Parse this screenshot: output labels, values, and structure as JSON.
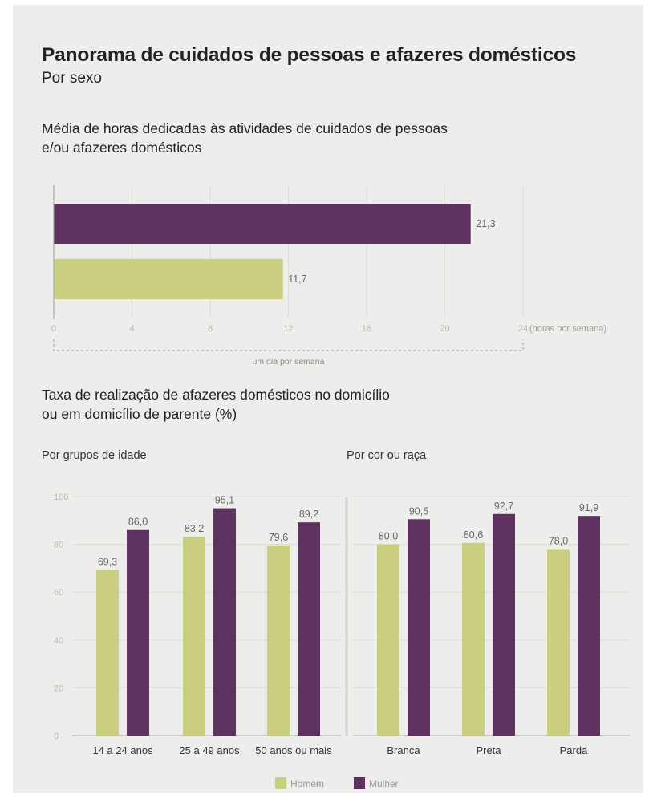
{
  "header": {
    "title": "Panorama de cuidados de pessoas e afazeres domésticos",
    "subtitle": "Por sexo"
  },
  "colors": {
    "homem": "#c9cf7e",
    "mulher": "#5e3160"
  },
  "legend": {
    "homem": "Homem",
    "mulher": "Mulher"
  },
  "chart_data": [
    {
      "type": "bar",
      "orientation": "horizontal",
      "title": "Média de horas dedicadas às atividades de cuidados de pessoas e/ou afazeres domésticos",
      "title_lines": [
        "Média de horas dedicadas às atividades de cuidados de pessoas",
        "e/ou afazeres domésticos"
      ],
      "categories": [
        "Mulher",
        "Homem"
      ],
      "values": [
        21.3,
        11.7
      ],
      "value_labels": [
        "21,3",
        "11,7"
      ],
      "xlim": [
        0,
        24
      ],
      "x_ticks": [
        0,
        4,
        8,
        12,
        16,
        20,
        24
      ],
      "x_unit": "(horas por semana)",
      "annotation": "um dia por semana"
    },
    {
      "type": "bar",
      "title": "Taxa de realização de afazeres domésticos no domicílio ou em domicílio de parente (%)",
      "title_lines": [
        "Taxa de realização de afazeres domésticos no domicílio",
        "ou em domicílio de parente (%)"
      ],
      "subtitle": "Por grupos de idade",
      "categories": [
        "14 a 24 anos",
        "25 a 49 anos",
        "50 anos ou mais"
      ],
      "series": [
        {
          "name": "Homem",
          "values": [
            69.3,
            83.2,
            79.6
          ],
          "labels": [
            "69,3",
            "83,2",
            "79,6"
          ]
        },
        {
          "name": "Mulher",
          "values": [
            86.0,
            95.1,
            89.2
          ],
          "labels": [
            "86,0",
            "95,1",
            "89,2"
          ]
        }
      ],
      "ylim": [
        0,
        100
      ],
      "y_ticks": [
        0,
        20,
        40,
        60,
        80,
        100
      ],
      "legend_position": "bottom"
    },
    {
      "type": "bar",
      "subtitle": "Por cor ou raça",
      "categories": [
        "Branca",
        "Preta",
        "Parda"
      ],
      "series": [
        {
          "name": "Homem",
          "values": [
            80.0,
            80.6,
            78.0
          ],
          "labels": [
            "80,0",
            "80,6",
            "78,0"
          ]
        },
        {
          "name": "Mulher",
          "values": [
            90.5,
            92.7,
            91.9
          ],
          "labels": [
            "90,5",
            "92,7",
            "91,9"
          ]
        }
      ],
      "ylim": [
        0,
        100
      ],
      "legend_position": "bottom"
    }
  ]
}
